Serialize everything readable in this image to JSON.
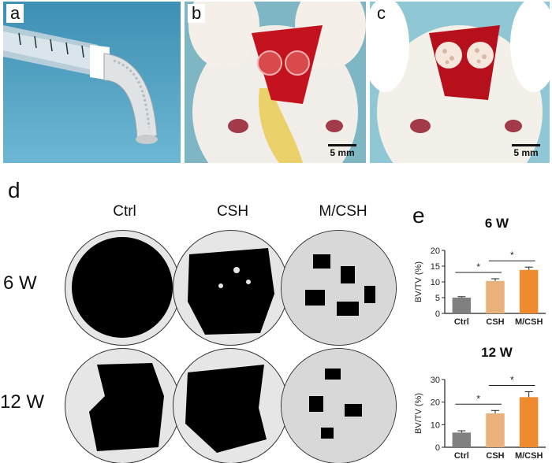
{
  "panels": {
    "a": {
      "label": "a"
    },
    "b": {
      "label": "b",
      "scale": "5 mm"
    },
    "c": {
      "label": "c",
      "scale": "5 mm"
    },
    "d": {
      "label": "d",
      "columns": [
        "Ctrl",
        "CSH",
        "M/CSH"
      ],
      "rows": [
        "6 W",
        "12 W"
      ]
    },
    "e": {
      "label": "e"
    }
  },
  "colors": {
    "Ctrl": "#808080",
    "CSH": "#e8b27a",
    "M/CSH": "#ef8a2e"
  },
  "chart_data": [
    {
      "type": "bar",
      "title": "6 W",
      "ylabel": "BV/TV (%)",
      "categories": [
        "Ctrl",
        "CSH",
        "M/CSH"
      ],
      "values": [
        5.0,
        10.3,
        13.8
      ],
      "errors": [
        0.3,
        0.7,
        0.9
      ],
      "ylim": [
        0,
        20
      ],
      "yticks": [
        0,
        5,
        10,
        15,
        20
      ],
      "significance": [
        {
          "from": "Ctrl",
          "to": "CSH",
          "label": "*"
        },
        {
          "from": "CSH",
          "to": "M/CSH",
          "label": "*"
        }
      ]
    },
    {
      "type": "bar",
      "title": "12 W",
      "ylabel": "BV/TV (%)",
      "categories": [
        "Ctrl",
        "CSH",
        "M/CSH"
      ],
      "values": [
        6.5,
        15.0,
        22.2
      ],
      "errors": [
        0.8,
        1.3,
        2.4
      ],
      "ylim": [
        0,
        30
      ],
      "yticks": [
        0,
        10,
        20,
        30
      ],
      "significance": [
        {
          "from": "Ctrl",
          "to": "CSH",
          "label": "*"
        },
        {
          "from": "CSH",
          "to": "M/CSH",
          "label": "*"
        }
      ]
    }
  ]
}
